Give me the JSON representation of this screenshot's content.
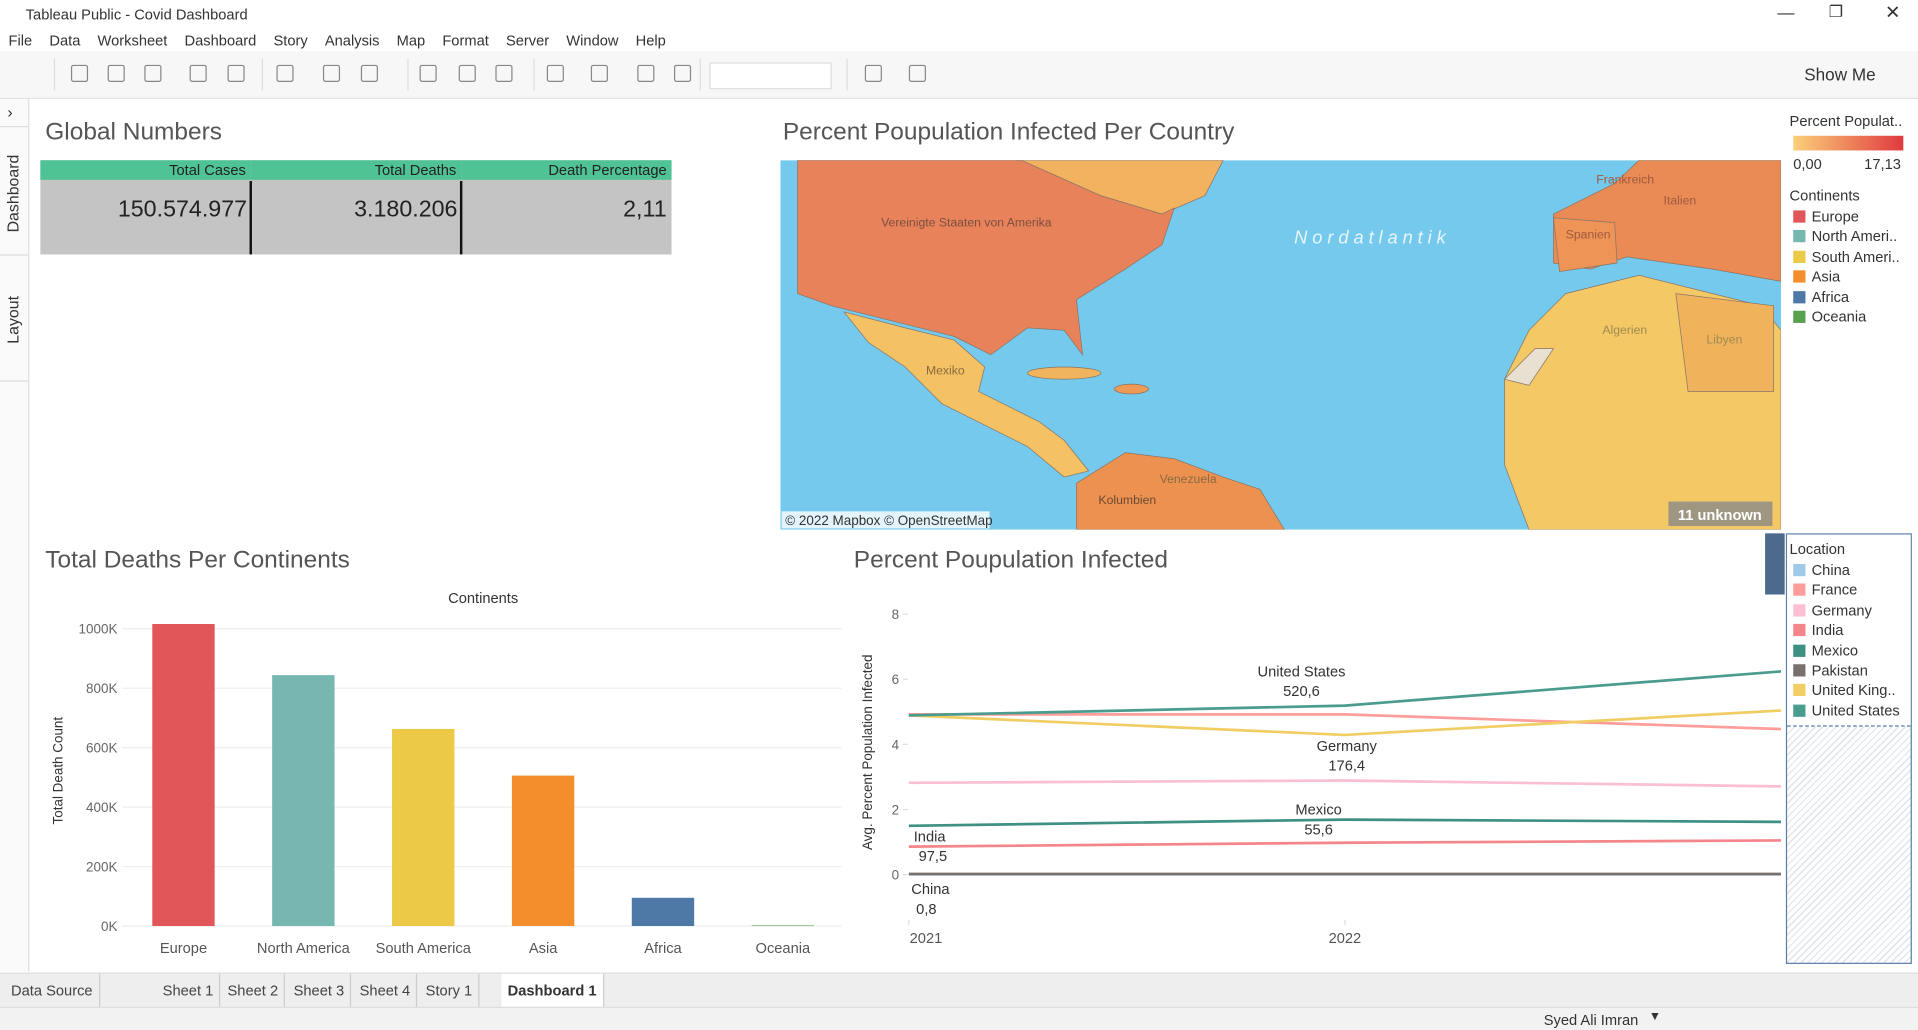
{
  "window": {
    "title": "Tableau Public - Covid Dashboard"
  },
  "menu": [
    "File",
    "Data",
    "Worksheet",
    "Dashboard",
    "Story",
    "Analysis",
    "Map",
    "Format",
    "Server",
    "Window",
    "Help"
  ],
  "toolbar": {
    "show_me": "Show Me"
  },
  "side_tabs": [
    "Dashboard",
    "Layout"
  ],
  "global_numbers": {
    "title": "Global Numbers",
    "headers": [
      "Total Cases",
      "Total Deaths",
      "Death Percentage"
    ],
    "values": [
      "150.574.977",
      "3.180.206",
      "2,11"
    ]
  },
  "map": {
    "title": "Percent Poupulation Infected Per Country",
    "labels": [
      "Vereinigte Staaten von Amerika",
      "Nordatlantik",
      "Mexiko",
      "Kolumbien",
      "Venezuela",
      "Algerien",
      "Libyen",
      "Spanien",
      "Frankreich",
      "Italien"
    ],
    "attribution": "© 2022 Mapbox © OpenStreetMap",
    "unknown": "11 unknown"
  },
  "percent_legend": {
    "title": "Percent Populat..",
    "min": "0,00",
    "max": "17,13"
  },
  "continent_legend": {
    "title": "Continents",
    "items": [
      "Europe",
      "North Ameri..",
      "South Ameri..",
      "Asia",
      "Africa",
      "Oceania"
    ]
  },
  "location_legend": {
    "title": "Location",
    "items": [
      "China",
      "France",
      "Germany",
      "India",
      "Mexico",
      "Pakistan",
      "United King..",
      "United States"
    ]
  },
  "chart_data": [
    {
      "type": "bar",
      "title": "Total Deaths Per Continents",
      "header": "Continents",
      "y_label": "Total Death Count",
      "categories": [
        "Europe",
        "North America",
        "South America",
        "Asia",
        "Africa",
        "Oceania"
      ],
      "values": [
        1016000,
        844000,
        663000,
        506000,
        95000,
        2000
      ],
      "colors": [
        "#e15759",
        "#76b7b2",
        "#edc948",
        "#f28e2b",
        "#4e79a7",
        "#59a14f"
      ],
      "ylim": [
        0,
        1000000
      ],
      "yticks": [
        {
          "value": 0,
          "label": "0K"
        },
        {
          "value": 200000,
          "label": "200K"
        },
        {
          "value": 400000,
          "label": "400K"
        },
        {
          "value": 600000,
          "label": "600K"
        },
        {
          "value": 800000,
          "label": "800K"
        },
        {
          "value": 1000000,
          "label": "1000K"
        }
      ],
      "grid": true
    },
    {
      "type": "line",
      "title": "Percent Poupulation Infected",
      "y_label": "Avg. Percent Population Infected",
      "x": [
        2021,
        2022,
        2023
      ],
      "xlim": [
        2021,
        2023
      ],
      "xticks": [
        2021,
        2022
      ],
      "ylim": [
        0,
        8
      ],
      "yticks": [
        0,
        2,
        4,
        6,
        8
      ],
      "series": [
        {
          "name": "China",
          "color": "#a0cbe8",
          "values": [
            0.01,
            0.01,
            0.01
          ]
        },
        {
          "name": "France",
          "color": "#ff9d9a",
          "values": [
            4.92,
            4.92,
            4.47
          ]
        },
        {
          "name": "Germany",
          "color": "#fabfd2",
          "values": [
            2.82,
            2.89,
            2.71
          ]
        },
        {
          "name": "India",
          "color": "#f4858a",
          "values": [
            0.86,
            0.98,
            1.05
          ]
        },
        {
          "name": "Mexico",
          "color": "#3e8f84",
          "values": [
            1.5,
            1.69,
            1.62
          ]
        },
        {
          "name": "Pakistan",
          "color": "#79706e",
          "values": [
            0.02,
            0.02,
            0.02
          ]
        },
        {
          "name": "United Kingdom",
          "color": "#f1ce63",
          "values": [
            4.89,
            4.29,
            5.04
          ]
        },
        {
          "name": "United States",
          "color": "#4a9c8f",
          "values": [
            4.89,
            5.19,
            6.24
          ]
        }
      ],
      "annotations": [
        {
          "text": "United States",
          "value_label": "520,6"
        },
        {
          "text": "Germany",
          "value_label": "176,4"
        },
        {
          "text": "Mexico",
          "value_label": "55,6"
        },
        {
          "text": "India",
          "value_label": "97,5"
        },
        {
          "text": "China",
          "value_label": "0,8"
        }
      ]
    }
  ],
  "bottom_tabs": [
    "Data Source",
    "Sheet 1",
    "Sheet 2",
    "Sheet 3",
    "Sheet 4",
    "Story 1",
    "Dashboard 1"
  ],
  "status": {
    "user": "Syed Ali Imran"
  }
}
